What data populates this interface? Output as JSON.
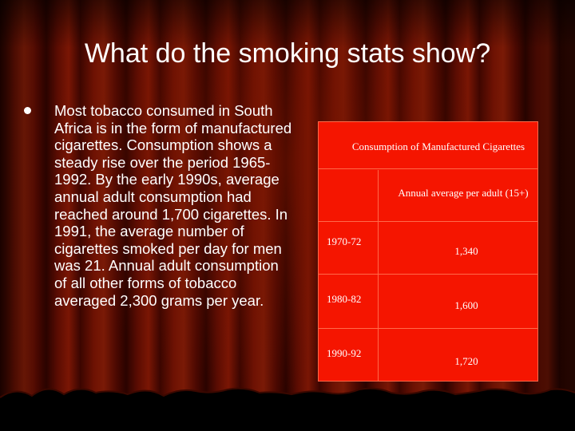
{
  "slide": {
    "title": "What do the smoking stats show?",
    "bullet_text": "Most tobacco consumed in South Africa is in the form of manufactured cigarettes. Consumption shows a steady rise over the period 1965-1992. By the early 1990s, average annual adult consumption had reached around 1,700 cigarettes. In 1991, the average number of cigarettes smoked per day for men was 21. Annual adult consumption of all other forms of tobacco averaged 2,300 grams per year."
  },
  "table": {
    "title": "Consumption of Manufactured Cigarettes",
    "column_header": "Annual average per adult (15+)",
    "rows": [
      {
        "period": "1970-72",
        "value": "1,340"
      },
      {
        "period": "1980-82",
        "value": "1,600"
      },
      {
        "period": "1990-92",
        "value": "1,720"
      }
    ]
  },
  "colors": {
    "table_fill": "#f51500",
    "curtain": "#6e1203",
    "text": "#ffffff"
  }
}
